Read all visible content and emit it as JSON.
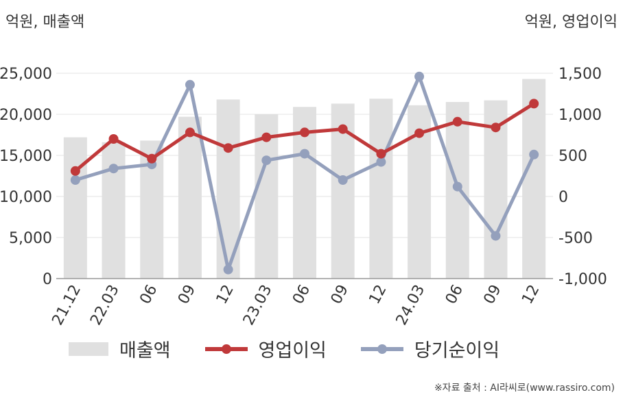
{
  "units": {
    "left": "억원, 매출액",
    "right": "억원, 영업이익"
  },
  "legend": {
    "sales": "매출액",
    "op": "영업이익",
    "net": "당기순이익"
  },
  "source": "※자료 출처 : AI라씨로(www.rassiro.com)",
  "colors": {
    "bar": "#e0e0e0",
    "op": "#c0393a",
    "net": "#94a0bc",
    "grid": "#e3e3e3",
    "axis": "#999999"
  },
  "chart_data": {
    "type": "bar",
    "categories": [
      "21.12",
      "22.03",
      "06",
      "09",
      "12",
      "23.03",
      "06",
      "09",
      "12",
      "24.03",
      "06",
      "09",
      "12"
    ],
    "series": [
      {
        "name": "매출액",
        "type": "bar",
        "axis": "left",
        "values": [
          17200,
          16600,
          16800,
          19700,
          21800,
          20000,
          20900,
          21300,
          21900,
          21100,
          21500,
          21700,
          24300
        ]
      },
      {
        "name": "영업이익",
        "type": "line",
        "axis": "right",
        "values": [
          310,
          700,
          460,
          780,
          590,
          720,
          780,
          820,
          520,
          770,
          910,
          840,
          1130
        ]
      },
      {
        "name": "당기순이익",
        "type": "line",
        "axis": "right",
        "values": [
          200,
          340,
          390,
          1360,
          -890,
          440,
          520,
          200,
          420,
          1460,
          120,
          -480,
          510
        ]
      }
    ],
    "left_axis": {
      "ylim": [
        0,
        25000
      ],
      "ticks": [
        0,
        5000,
        10000,
        15000,
        20000,
        25000
      ],
      "tick_labels": [
        "0",
        "5,000",
        "10,000",
        "15,000",
        "20,000",
        "25,000"
      ]
    },
    "right_axis": {
      "ylim": [
        -1000,
        1500
      ],
      "ticks": [
        -1000,
        -500,
        0,
        500,
        1000,
        1500
      ],
      "tick_labels": [
        "-1,000",
        "-500",
        "0",
        "500",
        "1,000",
        "1,500"
      ]
    },
    "grid": true,
    "legend_position": "bottom"
  }
}
